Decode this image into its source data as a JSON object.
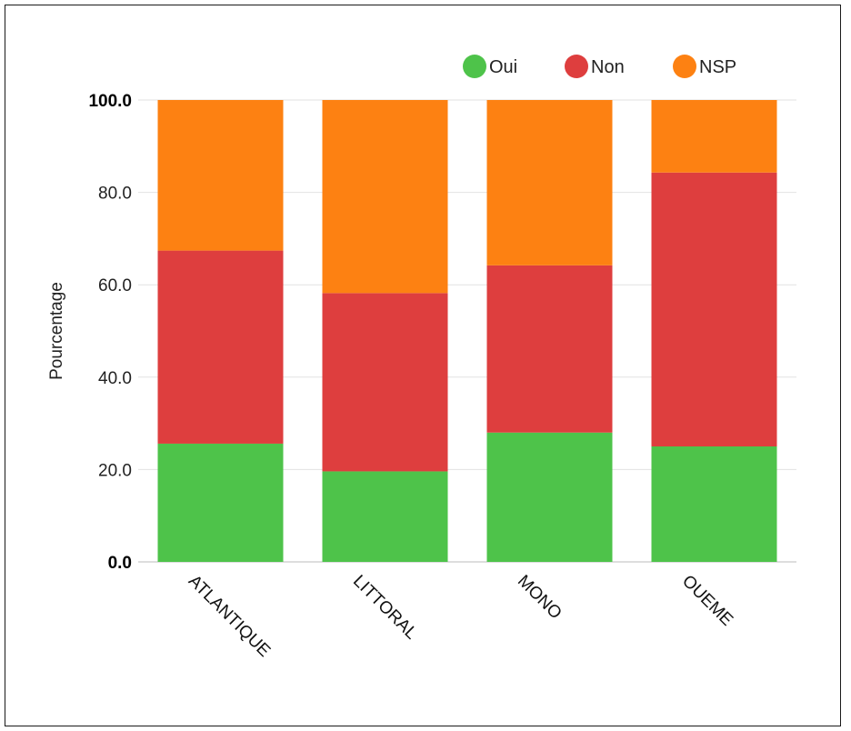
{
  "chart_data": {
    "type": "bar",
    "stacked": true,
    "categories": [
      "ATLANTIQUE",
      "LITTORAL",
      "MONO",
      "OUEME"
    ],
    "series": [
      {
        "name": "Oui",
        "color": "#4ec34a",
        "values": [
          25.6,
          19.6,
          28.0,
          25.0
        ]
      },
      {
        "name": "Non",
        "color": "#de3e3e",
        "values": [
          41.8,
          38.6,
          36.2,
          59.3
        ]
      },
      {
        "name": "NSP",
        "color": "#fd8112",
        "values": [
          32.6,
          41.8,
          35.8,
          15.7
        ]
      }
    ],
    "title": "",
    "xlabel": "",
    "ylabel": "Pourcentage",
    "ylim": [
      0,
      100
    ],
    "yticks": [
      "0.0",
      "20.0",
      "40.0",
      "60.0",
      "80.0",
      "100.0"
    ],
    "grid": true,
    "legend_position": "top-right"
  }
}
